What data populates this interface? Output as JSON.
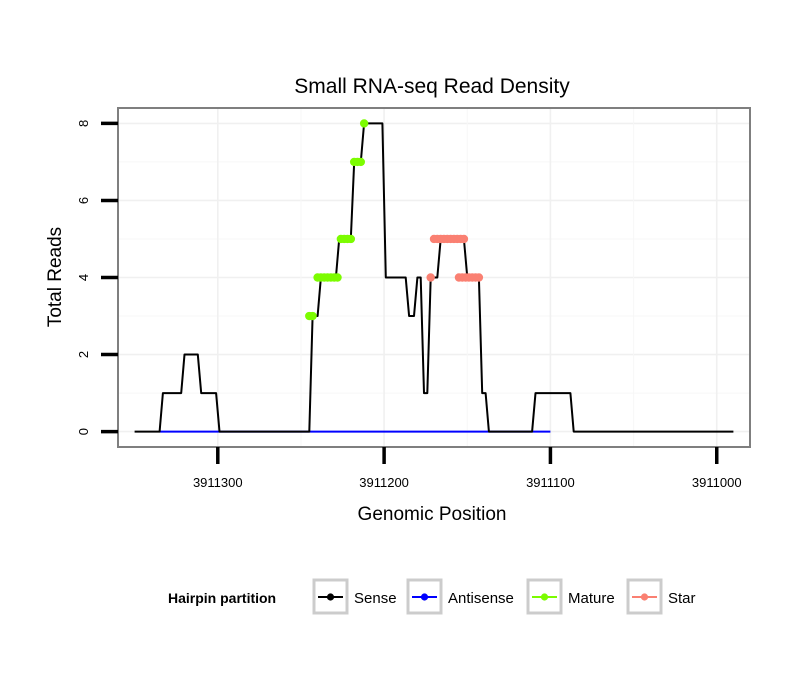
{
  "chart_data": {
    "type": "line",
    "title": "Small RNA-seq Read Density",
    "xlabel": "Genomic Position",
    "ylabel": "Total Reads",
    "xlim": [
      3911360,
      3910980
    ],
    "x_reversed": true,
    "ylim": [
      -0.4,
      8.4
    ],
    "x_ticks": [
      3911300,
      3911200,
      3911100,
      3911000
    ],
    "x_tick_labels": [
      "3911300",
      "3911200",
      "3911100",
      "3911000"
    ],
    "y_ticks": [
      0,
      2,
      4,
      6,
      8
    ],
    "y_tick_labels": [
      "0",
      "2",
      "4",
      "6",
      "8"
    ],
    "grid": true,
    "legend": {
      "title": "Hairpin partition",
      "position": "bottom",
      "entries": [
        {
          "name": "Sense",
          "color": "#000000"
        },
        {
          "name": "Antisense",
          "color": "#0000ff"
        },
        {
          "name": "Mature",
          "color": "#7cfc00"
        },
        {
          "name": "Star",
          "color": "#fa8072"
        }
      ]
    },
    "series": [
      {
        "name": "Sense",
        "color": "#000000",
        "x": [
          3911350,
          3911335,
          3911333,
          3911322,
          3911320,
          3911312,
          3911310,
          3911301,
          3911299,
          3911245,
          3911243,
          3911240,
          3911238,
          3911229,
          3911227,
          3911220,
          3911218,
          3911214,
          3911212,
          3911201,
          3911199,
          3911194,
          3911191,
          3911187,
          3911185,
          3911182,
          3911180,
          3911178,
          3911176,
          3911174,
          3911172,
          3911168,
          3911166,
          3911164,
          3911162,
          3911152,
          3911150,
          3911143,
          3911141,
          3911139,
          3911137,
          3911111,
          3911109,
          3911088,
          3911086,
          3910990
        ],
        "y": [
          0,
          0,
          1,
          1,
          2,
          2,
          1,
          1,
          0,
          0,
          3,
          3,
          4,
          4,
          5,
          5,
          7,
          7,
          8,
          8,
          4,
          4,
          4,
          4,
          3,
          3,
          4,
          4,
          1,
          1,
          4,
          4,
          5,
          5,
          5,
          5,
          4,
          4,
          1,
          1,
          0,
          0,
          1,
          1,
          0,
          0
        ]
      },
      {
        "name": "Antisense",
        "color": "#0000ff",
        "x": [
          3911335,
          3911100
        ],
        "y": [
          0,
          0
        ]
      },
      {
        "name": "Mature",
        "color": "#7cfc00",
        "x": [
          3911245,
          3911243,
          3911240,
          3911238,
          3911236,
          3911234,
          3911232,
          3911230,
          3911228,
          3911226,
          3911224,
          3911222,
          3911220,
          3911218,
          3911216,
          3911214,
          3911212
        ],
        "y": [
          3,
          3,
          4,
          4,
          4,
          4,
          4,
          4,
          4,
          5,
          5,
          5,
          5,
          7,
          7,
          7,
          8
        ]
      },
      {
        "name": "Star",
        "color": "#fa8072",
        "x": [
          3911172,
          3911170,
          3911168,
          3911166,
          3911164,
          3911162,
          3911160,
          3911158,
          3911156,
          3911154,
          3911152,
          3911155,
          3911153,
          3911151,
          3911149,
          3911147,
          3911145,
          3911143
        ],
        "y": [
          4,
          5,
          5,
          5,
          5,
          5,
          5,
          5,
          5,
          5,
          5,
          4,
          4,
          4,
          4,
          4,
          4,
          4
        ]
      }
    ]
  }
}
